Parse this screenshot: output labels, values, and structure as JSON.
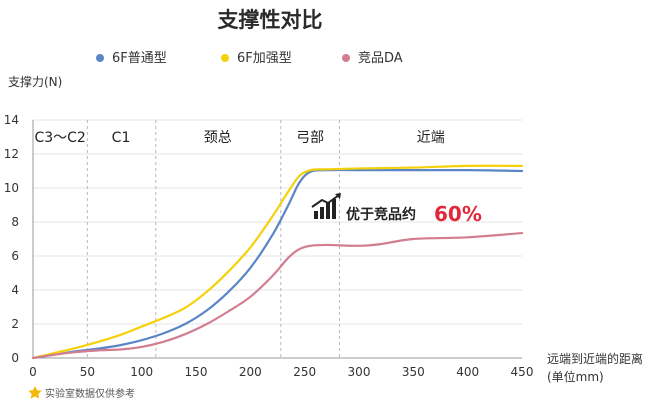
{
  "chart_data": {
    "type": "line",
    "title": "支撑性对比",
    "ylabel": "支撑力(N)",
    "xlabel_line1": "远端到近端的距离",
    "xlabel_line2": "(单位mm)",
    "xlim": [
      0,
      450
    ],
    "ylim": [
      0,
      14
    ],
    "xticks": [
      0,
      50,
      100,
      150,
      200,
      250,
      300,
      350,
      400,
      450
    ],
    "yticks": [
      0,
      2,
      4,
      6,
      8,
      10,
      12,
      14
    ],
    "grid": "horizontal",
    "legend_position": "top",
    "region_dividers": [
      50,
      113,
      228,
      282
    ],
    "regions": [
      {
        "label": "C3～C2",
        "x": 25
      },
      {
        "label": "C1",
        "x": 81
      },
      {
        "label": "颈总",
        "x": 170
      },
      {
        "label": "弓部",
        "x": 255
      },
      {
        "label": "近端",
        "x": 366
      }
    ],
    "series": [
      {
        "name": "6F普通型",
        "color": "#5b86c5",
        "x": [
          0,
          20,
          40,
          60,
          80,
          100,
          120,
          140,
          160,
          180,
          200,
          220,
          235,
          245,
          255,
          270,
          300,
          350,
          400,
          450
        ],
        "y": [
          0,
          0.2,
          0.4,
          0.55,
          0.75,
          1.05,
          1.45,
          2.0,
          2.8,
          3.9,
          5.3,
          7.2,
          9.0,
          10.3,
          10.95,
          11.05,
          11.05,
          11.05,
          11.05,
          11.0
        ]
      },
      {
        "name": "6F加强型",
        "color": "#f5d10a",
        "x": [
          0,
          20,
          40,
          60,
          80,
          100,
          120,
          140,
          160,
          180,
          200,
          220,
          235,
          245,
          255,
          270,
          300,
          350,
          400,
          450
        ],
        "y": [
          0,
          0.3,
          0.6,
          0.95,
          1.35,
          1.85,
          2.35,
          2.95,
          3.9,
          5.1,
          6.5,
          8.3,
          9.8,
          10.7,
          11.05,
          11.1,
          11.15,
          11.2,
          11.3,
          11.3
        ]
      },
      {
        "name": "竞品DA",
        "color": "#d27d90",
        "x": [
          0,
          20,
          40,
          60,
          80,
          100,
          120,
          140,
          160,
          180,
          200,
          220,
          235,
          245,
          255,
          270,
          300,
          320,
          350,
          400,
          450
        ],
        "y": [
          0,
          0.2,
          0.35,
          0.45,
          0.5,
          0.65,
          0.95,
          1.4,
          2.0,
          2.75,
          3.6,
          4.8,
          5.9,
          6.4,
          6.6,
          6.65,
          6.6,
          6.7,
          7.0,
          7.1,
          7.35
        ]
      }
    ],
    "annotation": {
      "text": "优于竞品约",
      "value": "60%",
      "color": "#e0283a",
      "icon": "bar-chart-up-icon"
    },
    "footnote": {
      "icon": "star-icon",
      "text": "实验室数据仅供参考",
      "icon_color": "#f2b90c"
    }
  }
}
